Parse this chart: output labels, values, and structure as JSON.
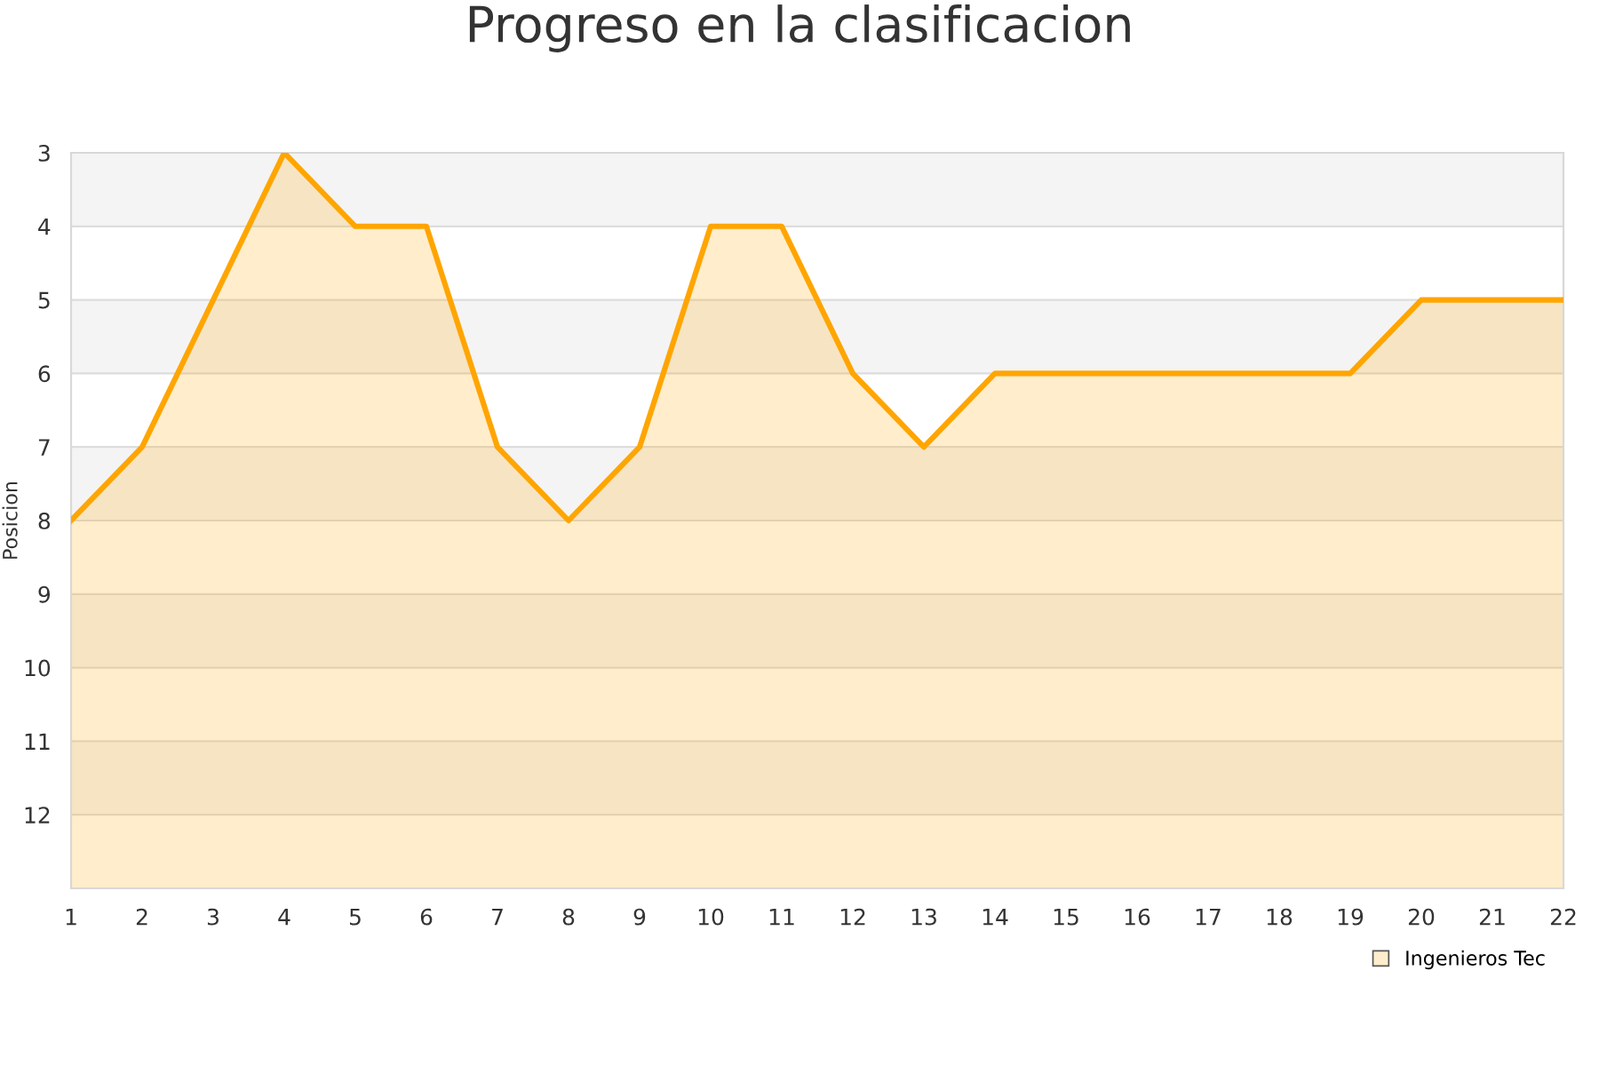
{
  "chart_data": {
    "type": "line",
    "title": "Progreso en la clasificacion",
    "ylabel": "Posicion",
    "x": [
      1,
      2,
      3,
      4,
      5,
      6,
      7,
      8,
      9,
      10,
      11,
      12,
      13,
      14,
      15,
      16,
      17,
      18,
      19,
      20,
      21,
      22
    ],
    "series": [
      {
        "name": "Ingenieros Tec",
        "color": "#ffa500",
        "values": [
          8,
          7,
          5,
          3,
          4,
          4,
          7,
          8,
          7,
          4,
          4,
          6,
          7,
          6,
          6,
          6,
          6,
          6,
          6,
          5,
          5,
          5
        ],
        "lower": [
          13,
          13,
          13,
          13,
          13,
          13,
          13,
          13,
          13,
          13,
          13,
          13,
          13,
          13,
          13,
          13,
          13,
          13,
          13,
          13,
          13,
          13
        ],
        "upper": [
          8,
          7,
          5,
          3,
          4,
          4,
          7,
          8,
          7,
          4,
          4,
          6,
          7,
          6,
          6,
          6,
          6,
          6,
          6,
          5,
          5,
          5
        ]
      }
    ],
    "xlim": [
      1,
      22
    ],
    "xticks": [
      1,
      2,
      3,
      4,
      5,
      6,
      7,
      8,
      9,
      10,
      11,
      12,
      13,
      14,
      15,
      16,
      17,
      18,
      19,
      20,
      21,
      22
    ],
    "ylim": [
      13,
      3
    ],
    "yticks": [
      3,
      4,
      5,
      6,
      7,
      8,
      9,
      10,
      11,
      12
    ],
    "grid": "y",
    "legend": "bottom right",
    "marker": "none",
    "line_style": "solid"
  }
}
